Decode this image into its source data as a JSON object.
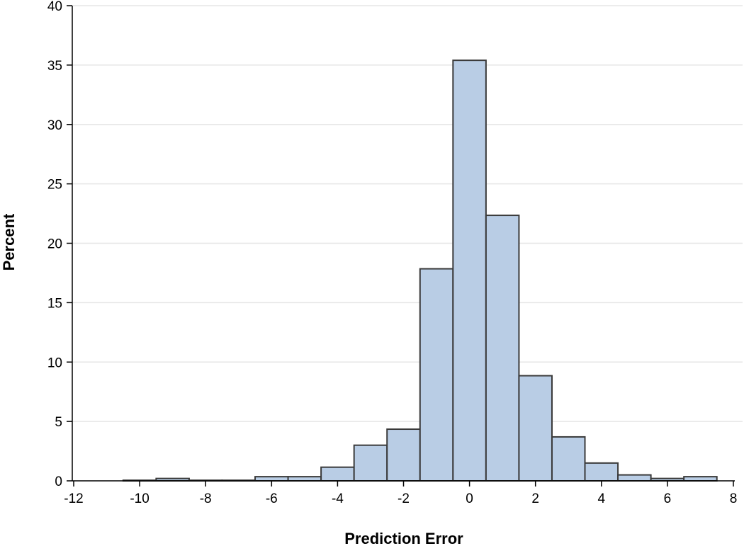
{
  "chart_data": {
    "type": "bar",
    "subtype": "histogram",
    "xlabel": "Prediction Error",
    "ylabel": "Percent",
    "xlim": [
      -12.5,
      8.1
    ],
    "ylim": [
      0,
      40
    ],
    "grid": true,
    "bin_width": 1,
    "x_ticks": [
      -12,
      -10,
      -8,
      -6,
      -4,
      -2,
      0,
      2,
      4,
      6,
      8
    ],
    "y_ticks": [
      0,
      5,
      10,
      15,
      20,
      25,
      30,
      35,
      40
    ],
    "bin_centers": [
      -10,
      -9,
      -8,
      -7,
      -6,
      -5,
      -4,
      -3,
      -2,
      -1,
      0,
      1,
      2,
      3,
      4,
      5,
      6,
      7
    ],
    "values": [
      0.05,
      0.2,
      0.05,
      0.05,
      0.35,
      0.35,
      1.15,
      3.0,
      4.35,
      17.85,
      35.4,
      22.35,
      8.85,
      3.7,
      1.5,
      0.5,
      0.2,
      0.35
    ]
  }
}
